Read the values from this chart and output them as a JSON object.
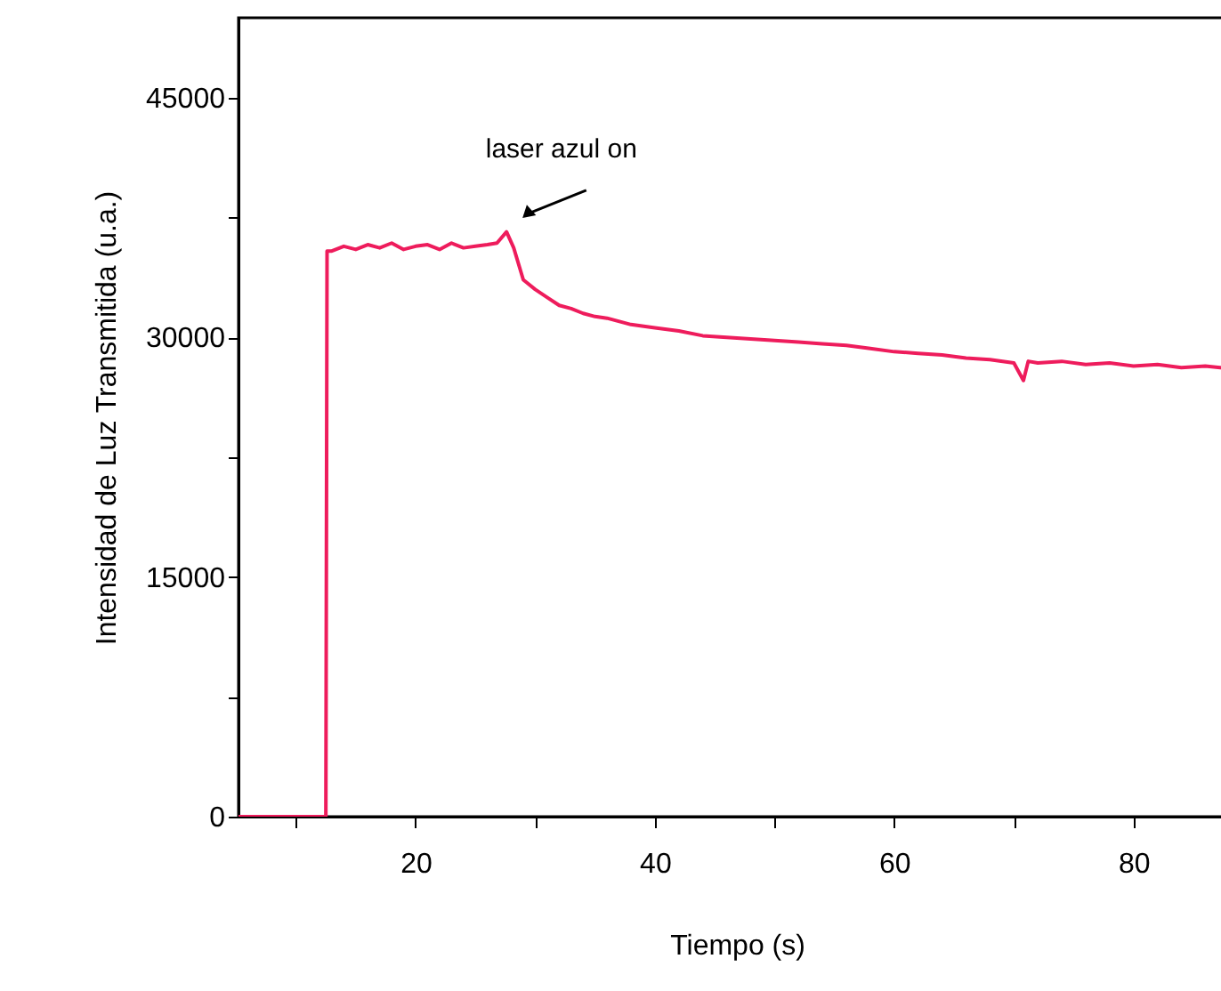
{
  "chart_data": {
    "type": "line",
    "xlabel": "Tiempo (s)",
    "ylabel": "Intensidad de Luz Transmitida (u.a.)",
    "xlim": [
      5.2,
      88.5
    ],
    "xticks": [
      {
        "value": 10,
        "label": null
      },
      20,
      {
        "value": 30,
        "label": null
      },
      40,
      {
        "value": 50,
        "label": null
      },
      60,
      {
        "value": 70,
        "label": null
      },
      80
    ],
    "ylim": [
      0,
      50000
    ],
    "yticks": [
      0,
      {
        "value": 7500,
        "label": null
      },
      15000,
      {
        "value": 22500,
        "label": null
      },
      30000,
      {
        "value": 37500,
        "label": null
      },
      45000
    ],
    "grid": false,
    "marker": "none",
    "line_style": "solid",
    "annotations": [
      {
        "text": "laser azul  on",
        "x": 27.6,
        "y": 36600
      }
    ],
    "series": [
      {
        "color": "#ee1c5c",
        "x": [
          5.2,
          8,
          10,
          12.5,
          12.6,
          13,
          14,
          15,
          16,
          17,
          18,
          19,
          20,
          21,
          22,
          23,
          24,
          25,
          26,
          26.8,
          27.6,
          28.2,
          29,
          30,
          31,
          32,
          33,
          34,
          35,
          36,
          38,
          40,
          42,
          44,
          46,
          48,
          50,
          52,
          54,
          56,
          58,
          60,
          62,
          64,
          66,
          68,
          70,
          70.8,
          71.2,
          72,
          74,
          76,
          78,
          80,
          82,
          84,
          86,
          88.5
        ],
        "values": [
          0,
          0,
          0,
          0,
          35400,
          35400,
          35700,
          35500,
          35800,
          35600,
          35900,
          35500,
          35700,
          35800,
          35500,
          35900,
          35600,
          35700,
          35800,
          35900,
          36600,
          35600,
          33600,
          33000,
          32500,
          32000,
          31800,
          31500,
          31300,
          31200,
          30800,
          30600,
          30400,
          30100,
          30000,
          29900,
          29800,
          29700,
          29600,
          29500,
          29300,
          29100,
          29000,
          28900,
          28700,
          28600,
          28400,
          27300,
          28500,
          28400,
          28500,
          28300,
          28400,
          28200,
          28300,
          28100,
          28200,
          28000
        ]
      }
    ]
  }
}
